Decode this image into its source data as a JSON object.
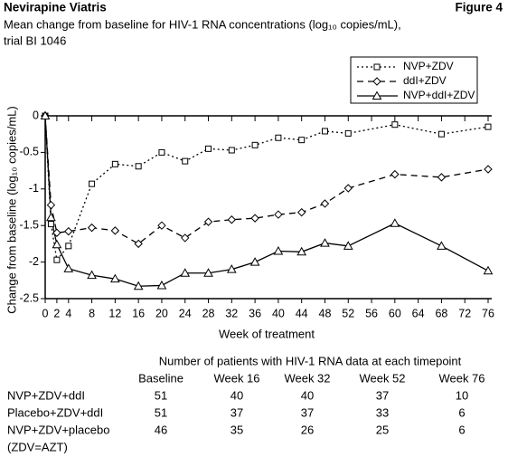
{
  "chart_data": {
    "type": "line",
    "title": "Nevirapine Viatris",
    "figure_label": "Figure 4",
    "subtitle": [
      "Mean change from baseline for HIV-1 RNA concentrations (log₁₀ copies/mL),",
      "trial BI 1046"
    ],
    "x_label": "Week of treatment",
    "y_label": "Change from baseline (log₁₀ copies/mL)",
    "x": [
      0,
      1,
      2,
      4,
      8,
      12,
      16,
      20,
      24,
      28,
      32,
      36,
      40,
      44,
      48,
      52,
      60,
      68,
      76
    ],
    "series": [
      {
        "name": "NVP+ZDV",
        "color": "#000000",
        "dash": "2,3",
        "marker": "square",
        "values": [
          0,
          -1.48,
          -1.97,
          -1.78,
          -0.93,
          -0.66,
          -0.69,
          -0.5,
          -0.62,
          -0.45,
          -0.47,
          -0.4,
          -0.3,
          -0.33,
          -0.21,
          -0.24,
          -0.12,
          -0.25,
          -0.15
        ]
      },
      {
        "name": "ddI+ZDV",
        "color": "#000000",
        "dash": "7,5",
        "marker": "diamond",
        "values": [
          0,
          -1.22,
          -1.6,
          -1.58,
          -1.53,
          -1.57,
          -1.75,
          -1.5,
          -1.67,
          -1.45,
          -1.42,
          -1.4,
          -1.35,
          -1.32,
          -1.2,
          -0.99,
          -0.8,
          -0.84,
          -0.73
        ]
      },
      {
        "name": "NVP+ddI+ZDV",
        "color": "#000000",
        "dash": "none",
        "marker": "triangle",
        "values": [
          0,
          -1.39,
          -1.76,
          -2.09,
          -2.18,
          -2.23,
          -2.33,
          -2.32,
          -2.15,
          -2.15,
          -2.1,
          -2.0,
          -1.85,
          -1.86,
          -1.74,
          -1.78,
          -1.47,
          -1.78,
          -2.12
        ]
      }
    ],
    "xlim": [
      0,
      76
    ],
    "xticks": [
      0,
      2,
      4,
      8,
      12,
      16,
      20,
      24,
      28,
      32,
      36,
      40,
      44,
      48,
      52,
      56,
      60,
      64,
      68,
      72,
      76
    ],
    "ylim": [
      -2.5,
      0
    ],
    "yticks": [
      0,
      -0.5,
      -1,
      -1.5,
      -2,
      -2.5
    ],
    "legend": "top-right"
  },
  "table": {
    "title": "Number of patients with HIV-1 RNA data at each timepoint",
    "columns": [
      "Baseline",
      "Week 16",
      "Week 32",
      "Week 52",
      "Week 76"
    ],
    "rows": [
      {
        "label": "NVP+ZDV+ddI",
        "values": [
          51,
          40,
          40,
          37,
          10
        ]
      },
      {
        "label": "Placebo+ZDV+ddI",
        "values": [
          51,
          37,
          37,
          33,
          6
        ]
      },
      {
        "label": "NVP+ZDV+placebo",
        "values": [
          46,
          35,
          26,
          25,
          6
        ]
      }
    ],
    "note": "(ZDV=AZT)"
  }
}
